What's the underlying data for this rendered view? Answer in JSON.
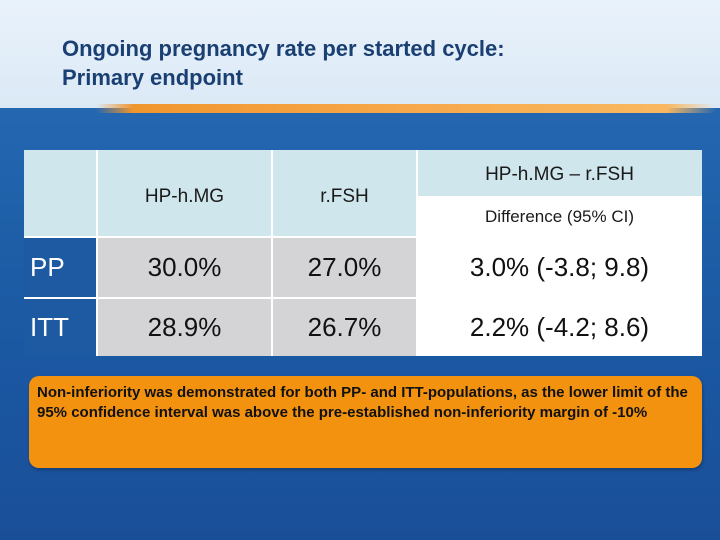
{
  "slide": {
    "title_line1": "Ongoing pregnancy rate per started cycle:",
    "title_line2": "Primary endpoint"
  },
  "table": {
    "col_hpmg": "HP-h.MG",
    "col_rfsh": "r.FSH",
    "col_diff_top": "HP-h.MG – r.FSH",
    "col_diff_bottom": "Difference (95% CI)",
    "rows": [
      {
        "label": "PP",
        "hpmg": "30.0%",
        "rfsh": "27.0%",
        "diff": "3.0% (-3.8; 9.8)"
      },
      {
        "label": "ITT",
        "hpmg": "28.9%",
        "rfsh": "26.7%",
        "diff": "2.2% (-4.2; 8.6)"
      }
    ]
  },
  "note": {
    "text": "Non-inferiority was demonstrated for both PP- and ITT-populations, as the lower limit of the 95% confidence interval was above the pre-established non-inferiority margin of -10%"
  },
  "colors": {
    "background": "#1d5ea7",
    "header": "#cfe7ec",
    "accent": "#f2920f",
    "grey_cell": "#d4d4d6"
  }
}
